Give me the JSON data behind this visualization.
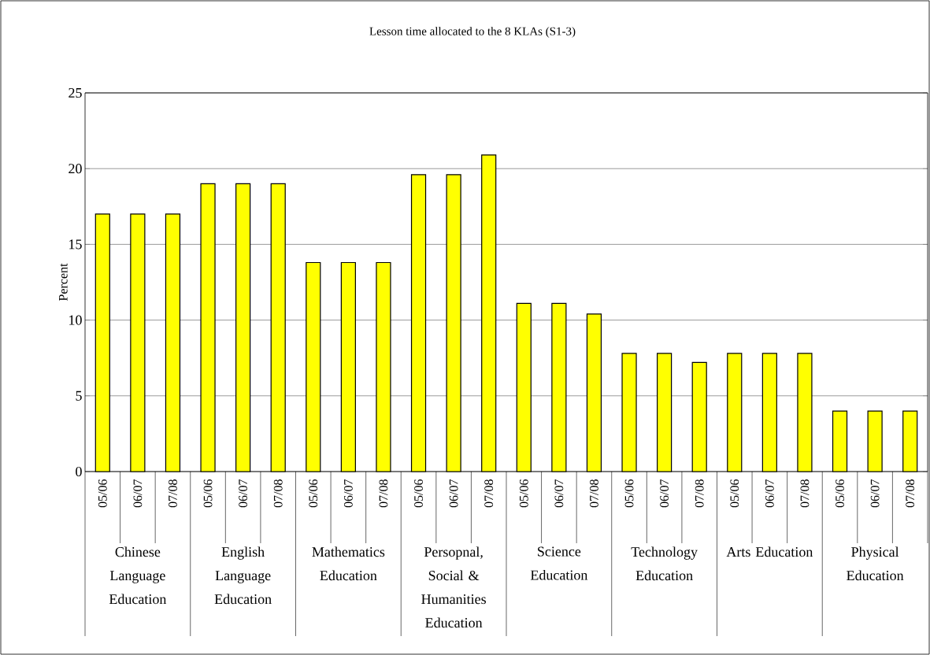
{
  "chart_data": {
    "type": "bar",
    "title": "Lesson time allocated to the 8 KLAs (S1-3)",
    "ylabel": "Percent",
    "categories": [
      "05/06",
      "06/07",
      "07/08",
      "05/06",
      "06/07",
      "07/08",
      "05/06",
      "06/07",
      "07/08",
      "05/06",
      "06/07",
      "07/08",
      "05/06",
      "06/07",
      "07/08",
      "05/06",
      "06/07",
      "07/08",
      "05/06",
      "06/07",
      "07/08",
      "05/06",
      "06/07",
      "07/08"
    ],
    "values": [
      17,
      17,
      17,
      19,
      19,
      19,
      13.8,
      13.8,
      13.8,
      19.6,
      19.6,
      20.9,
      11.1,
      11.1,
      10.4,
      7.8,
      7.8,
      7.2,
      7.8,
      7.8,
      7.8,
      4,
      4,
      4
    ],
    "color": "#ffff00",
    "ylim": [
      0,
      25
    ],
    "yticks": [
      0,
      5,
      10,
      15,
      20,
      25
    ],
    "grid": "y",
    "annotations": [
      "Chinese Language Education",
      "English Language Education",
      "Mathematics Education",
      "Persopnal, Social & Humanities Education",
      "Science Education",
      "Technology Education",
      "Arts Education",
      "Physical Education"
    ]
  }
}
